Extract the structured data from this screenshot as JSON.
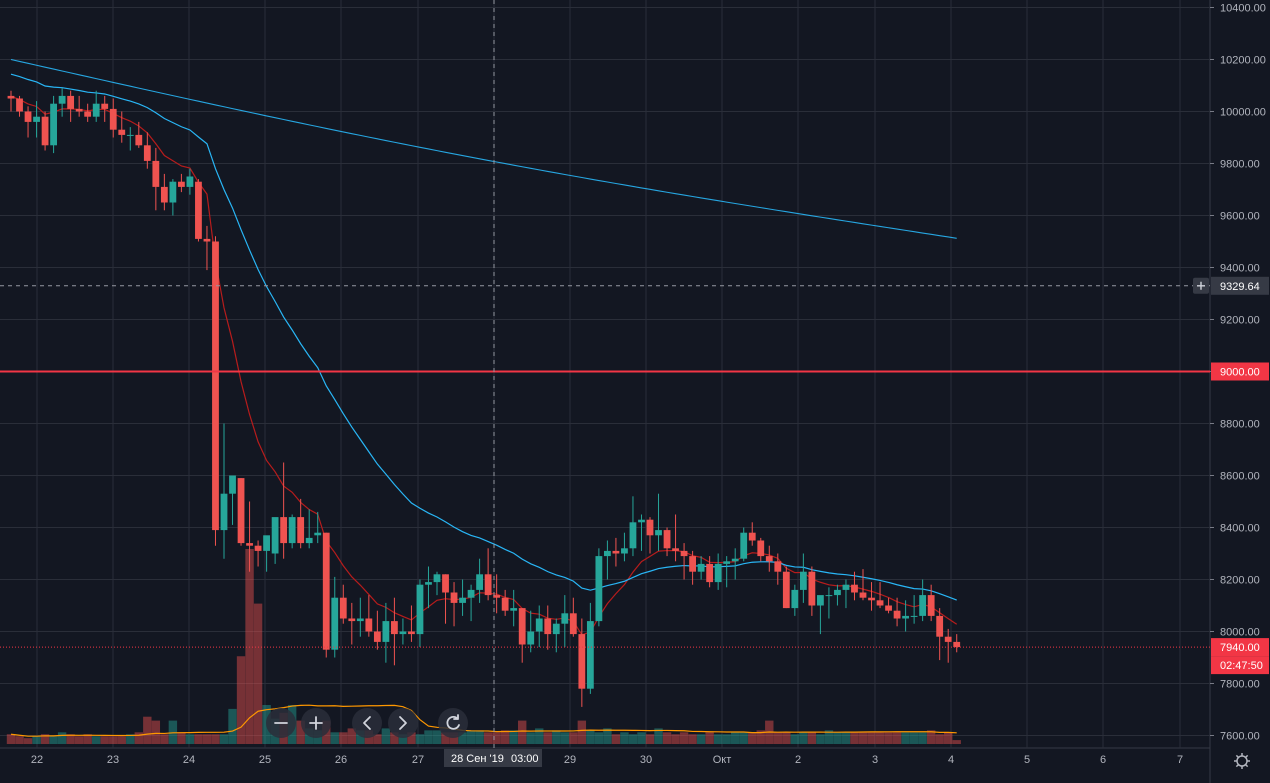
{
  "chart_data": {
    "type": "candlestick",
    "ylim": [
      7560,
      10400
    ],
    "y_ticks": [
      7600,
      7800,
      8000,
      8200,
      8400,
      8600,
      8800,
      9000,
      9200,
      9400,
      9600,
      9800,
      10000,
      10200,
      10400
    ],
    "x_ticks": [
      "22",
      "23",
      "24",
      "25",
      "26",
      "27",
      "28 Сен '19",
      "29",
      "30",
      "Окт",
      "2",
      "3",
      "4",
      "5",
      "6",
      "7"
    ],
    "grid": true,
    "crosshair": {
      "price_label": "9329.64",
      "time_label": "28 Сен '19",
      "time_suffix": "03:00",
      "price": 9329.64
    },
    "horizontal_line": {
      "price": 9000,
      "label": "9000.00",
      "color": "#f23645"
    },
    "last_price": {
      "label": "7940.00",
      "countdown": "02:47:50",
      "price": 7940,
      "color": "#f23645"
    },
    "colors": {
      "up": "#26a69a",
      "down": "#ef5350",
      "ma_fast": "#b71c1c",
      "ma_slow": "#29b6f6",
      "vol_ma": "#ff9800",
      "background": "#131722",
      "grid": "#2a2e39"
    },
    "candles": [
      [
        10060,
        10080,
        10000,
        10050
      ],
      [
        10050,
        10060,
        9980,
        10000
      ],
      [
        10000,
        10020,
        9900,
        9960
      ],
      [
        9960,
        10040,
        9900,
        9980
      ],
      [
        9980,
        10000,
        9850,
        9870
      ],
      [
        9870,
        10060,
        9840,
        10030
      ],
      [
        10030,
        10090,
        9980,
        10060
      ],
      [
        10060,
        10080,
        9960,
        10010
      ],
      [
        10010,
        10060,
        9980,
        10000
      ],
      [
        10000,
        10030,
        9960,
        9980
      ],
      [
        9980,
        10080,
        9960,
        10030
      ],
      [
        10030,
        10060,
        9960,
        10010
      ],
      [
        10010,
        10050,
        9900,
        9930
      ],
      [
        9930,
        10000,
        9880,
        9910
      ],
      [
        9910,
        9940,
        9850,
        9910
      ],
      [
        9910,
        9960,
        9860,
        9870
      ],
      [
        9870,
        9920,
        9780,
        9810
      ],
      [
        9810,
        9860,
        9620,
        9710
      ],
      [
        9710,
        9760,
        9620,
        9650
      ],
      [
        9650,
        9740,
        9600,
        9730
      ],
      [
        9730,
        9760,
        9690,
        9710
      ],
      [
        9710,
        9780,
        9680,
        9750
      ],
      [
        9730,
        9740,
        9500,
        9510
      ],
      [
        9510,
        9560,
        9390,
        9500
      ],
      [
        9500,
        9520,
        8330,
        8390
      ],
      [
        8390,
        8800,
        8280,
        8530
      ],
      [
        8530,
        8600,
        8410,
        8600
      ],
      [
        8590,
        8590,
        8330,
        8340
      ],
      [
        8340,
        8500,
        8230,
        8330
      ],
      [
        8330,
        8350,
        8250,
        8310
      ],
      [
        8310,
        8360,
        8230,
        8370
      ],
      [
        8300,
        8420,
        8260,
        8440
      ],
      [
        8440,
        8650,
        8280,
        8340
      ],
      [
        8340,
        8450,
        8320,
        8440
      ],
      [
        8440,
        8510,
        8320,
        8340
      ],
      [
        8340,
        8470,
        8320,
        8360
      ],
      [
        8370,
        8460,
        8340,
        8380
      ],
      [
        8380,
        8380,
        7900,
        7930
      ],
      [
        7930,
        8210,
        7900,
        8130
      ],
      [
        8130,
        8180,
        8030,
        8050
      ],
      [
        8050,
        8110,
        7950,
        8040
      ],
      [
        8040,
        8130,
        7980,
        8050
      ],
      [
        8050,
        8140,
        7980,
        8000
      ],
      [
        8000,
        8080,
        7930,
        7960
      ],
      [
        7960,
        8110,
        7880,
        8040
      ],
      [
        8040,
        8130,
        7870,
        7990
      ],
      [
        7990,
        8050,
        7950,
        8000
      ],
      [
        8000,
        8100,
        7960,
        7990
      ],
      [
        7990,
        8200,
        7940,
        8180
      ],
      [
        8180,
        8250,
        8090,
        8190
      ],
      [
        8190,
        8230,
        8140,
        8220
      ],
      [
        8220,
        8220,
        8030,
        8150
      ],
      [
        8150,
        8190,
        8020,
        8110
      ],
      [
        8110,
        8200,
        8060,
        8130
      ],
      [
        8130,
        8180,
        8040,
        8160
      ],
      [
        8160,
        8280,
        8110,
        8220
      ],
      [
        8220,
        8320,
        8120,
        8140
      ],
      [
        8140,
        8220,
        8070,
        8130
      ],
      [
        8130,
        8160,
        8060,
        8080
      ],
      [
        8080,
        8160,
        8020,
        8090
      ],
      [
        8090,
        8090,
        7880,
        7950
      ],
      [
        7950,
        8080,
        7920,
        8000
      ],
      [
        8000,
        8100,
        7940,
        8050
      ],
      [
        8050,
        8100,
        7930,
        7990
      ],
      [
        7990,
        8050,
        7920,
        8030
      ],
      [
        8030,
        8140,
        7940,
        8070
      ],
      [
        8070,
        8130,
        7980,
        7990
      ],
      [
        7990,
        8050,
        7710,
        7780
      ],
      [
        7780,
        8110,
        7760,
        8040
      ],
      [
        8040,
        8320,
        8020,
        8290
      ],
      [
        8290,
        8350,
        8200,
        8310
      ],
      [
        8310,
        8360,
        8250,
        8300
      ],
      [
        8300,
        8380,
        8270,
        8320
      ],
      [
        8320,
        8520,
        8290,
        8420
      ],
      [
        8420,
        8450,
        8310,
        8430
      ],
      [
        8430,
        8440,
        8300,
        8370
      ],
      [
        8370,
        8530,
        8310,
        8390
      ],
      [
        8390,
        8400,
        8290,
        8320
      ],
      [
        8320,
        8450,
        8270,
        8310
      ],
      [
        8310,
        8340,
        8200,
        8290
      ],
      [
        8290,
        8310,
        8180,
        8230
      ],
      [
        8230,
        8290,
        8200,
        8260
      ],
      [
        8260,
        8290,
        8170,
        8190
      ],
      [
        8190,
        8300,
        8160,
        8260
      ],
      [
        8260,
        8290,
        8170,
        8270
      ],
      [
        8270,
        8320,
        8200,
        8280
      ],
      [
        8280,
        8400,
        8270,
        8380
      ],
      [
        8380,
        8420,
        8330,
        8350
      ],
      [
        8350,
        8360,
        8270,
        8290
      ],
      [
        8290,
        8330,
        8230,
        8270
      ],
      [
        8270,
        8300,
        8180,
        8230
      ],
      [
        8230,
        8250,
        8090,
        8090
      ],
      [
        8090,
        8180,
        8060,
        8160
      ],
      [
        8160,
        8300,
        8110,
        8230
      ],
      [
        8230,
        8250,
        8060,
        8100
      ],
      [
        8100,
        8130,
        7990,
        8140
      ],
      [
        8140,
        8170,
        8050,
        8140
      ],
      [
        8140,
        8180,
        8100,
        8160
      ],
      [
        8160,
        8200,
        8090,
        8180
      ],
      [
        8180,
        8230,
        8120,
        8150
      ],
      [
        8150,
        8240,
        8120,
        8130
      ],
      [
        8130,
        8190,
        8080,
        8120
      ],
      [
        8120,
        8190,
        8090,
        8100
      ],
      [
        8100,
        8130,
        8070,
        8080
      ],
      [
        8080,
        8130,
        8020,
        8050
      ],
      [
        8050,
        8120,
        8000,
        8060
      ],
      [
        8060,
        8140,
        8030,
        8060
      ],
      [
        8060,
        8200,
        8040,
        8140
      ],
      [
        8140,
        8180,
        8040,
        8060
      ],
      [
        8060,
        8090,
        7890,
        7980
      ],
      [
        7980,
        8010,
        7880,
        7960
      ],
      [
        7960,
        7990,
        7920,
        7940
      ]
    ],
    "volumes": [
      0.05,
      0.04,
      0.03,
      0.04,
      0.05,
      0.04,
      0.06,
      0.05,
      0.04,
      0.05,
      0.04,
      0.04,
      0.04,
      0.04,
      0.05,
      0.06,
      0.14,
      0.12,
      0.05,
      0.12,
      0.06,
      0.05,
      0.05,
      0.05,
      0.05,
      0.05,
      0.18,
      0.45,
      1.0,
      0.72,
      0.2,
      0.13,
      0.16,
      0.2,
      0.12,
      0.08,
      0.07,
      0.12,
      0.06,
      0.06,
      0.08,
      0.07,
      0.07,
      0.05,
      0.08,
      0.06,
      0.05,
      0.06,
      0.05,
      0.07,
      0.07,
      0.06,
      0.06,
      0.06,
      0.07,
      0.07,
      0.06,
      0.06,
      0.07,
      0.07,
      0.12,
      0.06,
      0.08,
      0.06,
      0.07,
      0.06,
      0.06,
      0.12,
      0.07,
      0.06,
      0.08,
      0.05,
      0.06,
      0.05,
      0.06,
      0.05,
      0.08,
      0.06,
      0.05,
      0.06,
      0.05,
      0.05,
      0.06,
      0.05,
      0.05,
      0.06,
      0.06,
      0.06,
      0.07,
      0.12,
      0.06,
      0.06,
      0.05,
      0.06,
      0.06,
      0.05,
      0.07,
      0.06,
      0.06,
      0.06,
      0.06,
      0.06,
      0.06,
      0.06,
      0.06,
      0.06,
      0.06,
      0.06,
      0.07,
      0.05,
      0.06,
      0.02
    ]
  },
  "toolbar": {
    "zoom_out": "zoom-out",
    "zoom_in": "zoom-in",
    "scroll_left": "scroll-left",
    "scroll_right": "scroll-right",
    "reset": "reset"
  }
}
